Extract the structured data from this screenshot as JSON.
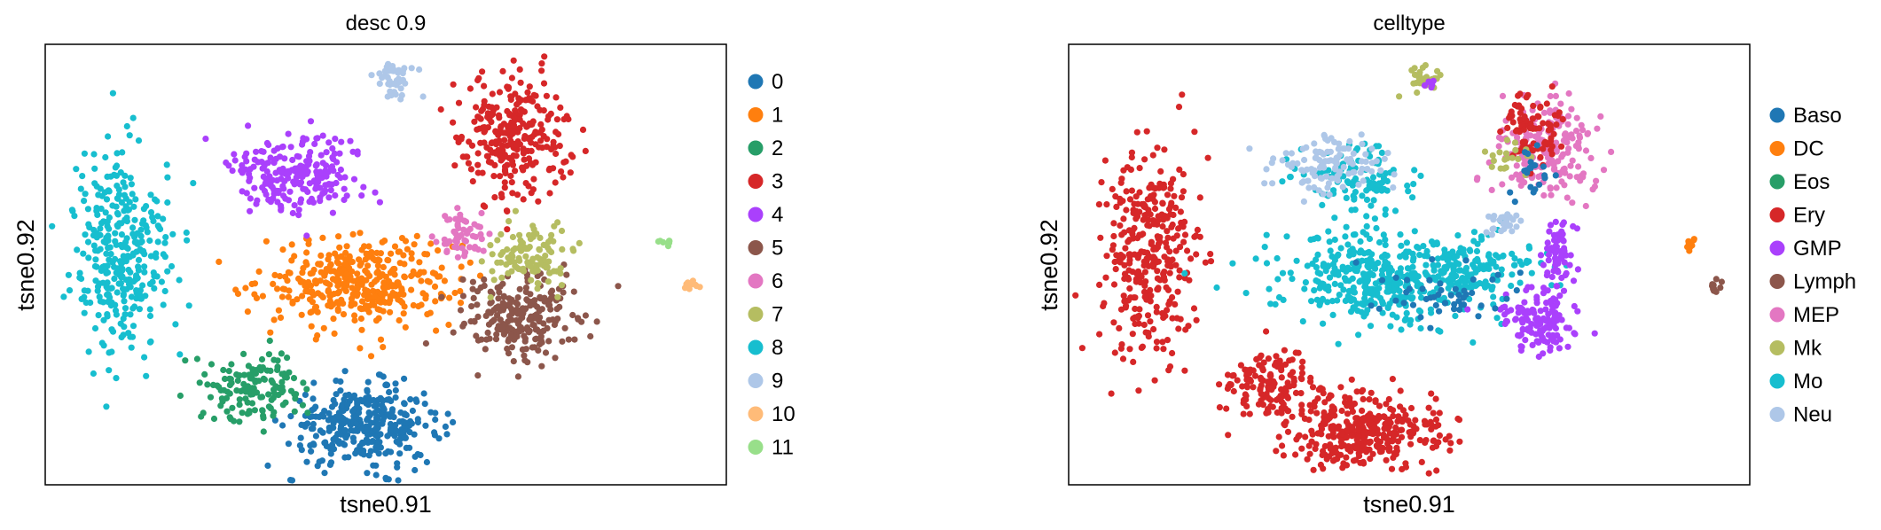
{
  "chart_data": [
    {
      "type": "scatter",
      "title": "desc 0.9",
      "xlabel": "tsne0.91",
      "ylabel": "tsne0.92",
      "legend_position": "right",
      "legend": [
        {
          "label": "0",
          "color": "#1f77b4"
        },
        {
          "label": "1",
          "color": "#ff7f0e"
        },
        {
          "label": "2",
          "color": "#279e68"
        },
        {
          "label": "3",
          "color": "#d62728"
        },
        {
          "label": "4",
          "color": "#aa40fc"
        },
        {
          "label": "5",
          "color": "#8c564b"
        },
        {
          "label": "6",
          "color": "#e377c2"
        },
        {
          "label": "7",
          "color": "#b5bd61"
        },
        {
          "label": "8",
          "color": "#17becf"
        },
        {
          "label": "9",
          "color": "#aec7e8"
        },
        {
          "label": "10",
          "color": "#ffbb78"
        },
        {
          "label": "11",
          "color": "#98df8a"
        }
      ],
      "clusters": [
        {
          "label": "0",
          "cx": 0.47,
          "cy": 0.135,
          "sx": 0.055,
          "sy": 0.045,
          "n": 330
        },
        {
          "label": "1",
          "cx": 0.46,
          "cy": 0.46,
          "sx": 0.07,
          "sy": 0.05,
          "n": 380
        },
        {
          "label": "2",
          "cx": 0.31,
          "cy": 0.22,
          "sx": 0.035,
          "sy": 0.04,
          "n": 140
        },
        {
          "label": "3",
          "cx": 0.69,
          "cy": 0.79,
          "sx": 0.04,
          "sy": 0.07,
          "n": 280
        },
        {
          "label": "4",
          "cx": 0.37,
          "cy": 0.71,
          "sx": 0.05,
          "sy": 0.045,
          "n": 220
        },
        {
          "label": "5",
          "cx": 0.7,
          "cy": 0.38,
          "sx": 0.045,
          "sy": 0.05,
          "n": 230
        },
        {
          "label": "6",
          "cx": 0.61,
          "cy": 0.57,
          "sx": 0.017,
          "sy": 0.025,
          "n": 60
        },
        {
          "label": "7",
          "cx": 0.71,
          "cy": 0.52,
          "sx": 0.03,
          "sy": 0.035,
          "n": 110
        },
        {
          "label": "8",
          "cx": 0.11,
          "cy": 0.53,
          "sx": 0.035,
          "sy": 0.11,
          "n": 330
        },
        {
          "label": "9",
          "cx": 0.51,
          "cy": 0.92,
          "sx": 0.015,
          "sy": 0.02,
          "n": 45
        },
        {
          "label": "10",
          "cx": 0.95,
          "cy": 0.45,
          "sx": 0.005,
          "sy": 0.008,
          "n": 10
        },
        {
          "label": "11",
          "cx": 0.91,
          "cy": 0.55,
          "sx": 0.005,
          "sy": 0.006,
          "n": 8
        }
      ]
    },
    {
      "type": "scatter",
      "title": "celltype",
      "xlabel": "tsne0.91",
      "ylabel": "tsne0.92",
      "legend_position": "right",
      "legend": [
        {
          "label": "Baso",
          "color": "#1f77b4"
        },
        {
          "label": "DC",
          "color": "#ff7f0e"
        },
        {
          "label": "Eos",
          "color": "#279e68"
        },
        {
          "label": "Ery",
          "color": "#d62728"
        },
        {
          "label": "GMP",
          "color": "#aa40fc"
        },
        {
          "label": "Lymph",
          "color": "#8c564b"
        },
        {
          "label": "MEP",
          "color": "#e377c2"
        },
        {
          "label": "Mk",
          "color": "#b5bd61"
        },
        {
          "label": "Mo",
          "color": "#17becf"
        },
        {
          "label": "Neu",
          "color": "#aec7e8"
        }
      ],
      "clusters": [
        {
          "label": "Ery",
          "cx": 0.44,
          "cy": 0.12,
          "sx": 0.055,
          "sy": 0.045,
          "n": 330
        },
        {
          "label": "Ery",
          "cx": 0.29,
          "cy": 0.22,
          "sx": 0.035,
          "sy": 0.04,
          "n": 140
        },
        {
          "label": "Ery",
          "cx": 0.12,
          "cy": 0.53,
          "sx": 0.035,
          "sy": 0.11,
          "n": 330
        },
        {
          "label": "Mo",
          "cx": 0.45,
          "cy": 0.46,
          "sx": 0.07,
          "sy": 0.05,
          "n": 380
        },
        {
          "label": "Mo",
          "cx": 0.6,
          "cy": 0.5,
          "sx": 0.045,
          "sy": 0.04,
          "n": 140
        },
        {
          "label": "Mo",
          "cx": 0.42,
          "cy": 0.69,
          "sx": 0.045,
          "sy": 0.045,
          "n": 110
        },
        {
          "label": "Neu",
          "cx": 0.38,
          "cy": 0.73,
          "sx": 0.045,
          "sy": 0.035,
          "n": 110
        },
        {
          "label": "GMP",
          "cx": 0.69,
          "cy": 0.37,
          "sx": 0.03,
          "sy": 0.035,
          "n": 130
        },
        {
          "label": "GMP",
          "cx": 0.72,
          "cy": 0.52,
          "sx": 0.012,
          "sy": 0.05,
          "n": 60
        },
        {
          "label": "MEP",
          "cx": 0.7,
          "cy": 0.76,
          "sx": 0.035,
          "sy": 0.06,
          "n": 200
        },
        {
          "label": "Ery",
          "cx": 0.68,
          "cy": 0.81,
          "sx": 0.025,
          "sy": 0.04,
          "n": 80
        },
        {
          "label": "Mk",
          "cx": 0.64,
          "cy": 0.74,
          "sx": 0.02,
          "sy": 0.02,
          "n": 20
        },
        {
          "label": "Mk",
          "cx": 0.52,
          "cy": 0.92,
          "sx": 0.012,
          "sy": 0.018,
          "n": 35
        },
        {
          "label": "GMP",
          "cx": 0.53,
          "cy": 0.91,
          "sx": 0.005,
          "sy": 0.008,
          "n": 6
        },
        {
          "label": "Baso",
          "cx": 0.56,
          "cy": 0.43,
          "sx": 0.05,
          "sy": 0.03,
          "n": 50
        },
        {
          "label": "Baso",
          "cx": 0.68,
          "cy": 0.7,
          "sx": 0.02,
          "sy": 0.04,
          "n": 20
        },
        {
          "label": "Neu",
          "cx": 0.64,
          "cy": 0.59,
          "sx": 0.015,
          "sy": 0.015,
          "n": 25
        },
        {
          "label": "DC",
          "cx": 0.91,
          "cy": 0.55,
          "sx": 0.005,
          "sy": 0.006,
          "n": 10
        },
        {
          "label": "Lymph",
          "cx": 0.95,
          "cy": 0.45,
          "sx": 0.005,
          "sy": 0.008,
          "n": 10
        }
      ]
    }
  ]
}
